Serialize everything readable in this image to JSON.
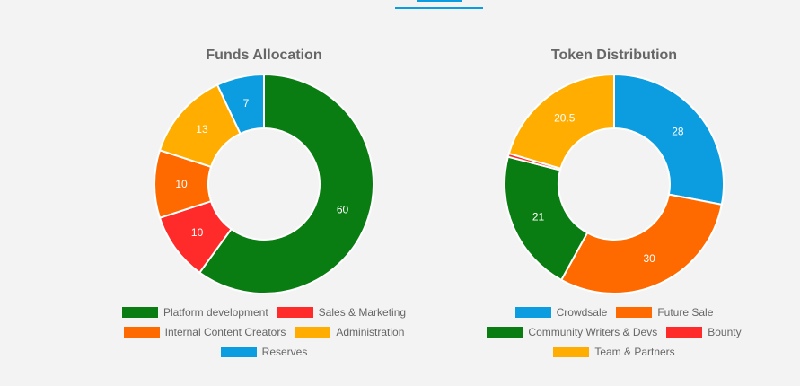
{
  "chart_data": [
    {
      "type": "pie",
      "variant": "doughnut",
      "title": "Funds Allocation",
      "categories": [
        "Platform development",
        "Sales & Marketing",
        "Internal Content Creators",
        "Administration",
        "Reserves"
      ],
      "values": [
        60,
        10,
        10,
        13,
        7
      ],
      "colors": [
        "#0a7d12",
        "#ff2b2b",
        "#ff6a00",
        "#ffad00",
        "#0b9de0"
      ],
      "data_labels": [
        "60",
        "10",
        "10",
        "13",
        "7"
      ],
      "legend_rows": [
        [
          0,
          1
        ],
        [
          2,
          3
        ],
        [
          4
        ]
      ],
      "legend": "bottom"
    },
    {
      "type": "pie",
      "variant": "doughnut",
      "title": "Token Distribution",
      "categories": [
        "Crowdsale",
        "Future Sale",
        "Community Writers & Devs",
        "Bounty",
        "Team & Partners"
      ],
      "values": [
        28,
        30,
        21,
        0.5,
        20.5
      ],
      "colors": [
        "#0b9de0",
        "#ff6a00",
        "#0a7d12",
        "#ff2b2b",
        "#ffad00"
      ],
      "data_labels": [
        "28",
        "30",
        "21",
        "",
        "20.5"
      ],
      "legend_rows": [
        [
          0,
          1
        ],
        [
          2,
          3
        ],
        [
          4
        ]
      ],
      "legend": "bottom"
    }
  ]
}
